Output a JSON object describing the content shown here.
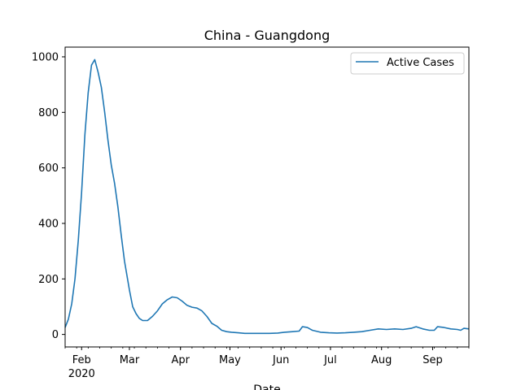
{
  "chart_data": {
    "type": "line",
    "title": "China - Guangdong",
    "xlabel": "Date",
    "ylabel": "",
    "x_start": "2020-01-22",
    "x_end": "2020-09-23",
    "ylim": [
      -45,
      1035
    ],
    "yticks": [
      0,
      200,
      400,
      600,
      800,
      1000
    ],
    "xticks": [
      {
        "date": "2020-02-01",
        "label": "Feb",
        "sublabel": "2020"
      },
      {
        "date": "2020-03-01",
        "label": "Mar",
        "sublabel": ""
      },
      {
        "date": "2020-04-01",
        "label": "Apr",
        "sublabel": ""
      },
      {
        "date": "2020-05-01",
        "label": "May",
        "sublabel": ""
      },
      {
        "date": "2020-06-01",
        "label": "Jun",
        "sublabel": ""
      },
      {
        "date": "2020-07-01",
        "label": "Jul",
        "sublabel": ""
      },
      {
        "date": "2020-08-01",
        "label": "Aug",
        "sublabel": ""
      },
      {
        "date": "2020-09-01",
        "label": "Sep",
        "sublabel": ""
      }
    ],
    "grid": false,
    "legend": {
      "position": "top-right"
    },
    "series": [
      {
        "name": "Active Cases",
        "color": "#1f77b4",
        "points": [
          [
            "2020-01-22",
            25
          ],
          [
            "2020-01-24",
            55
          ],
          [
            "2020-01-26",
            110
          ],
          [
            "2020-01-28",
            200
          ],
          [
            "2020-01-30",
            340
          ],
          [
            "2020-02-01",
            510
          ],
          [
            "2020-02-03",
            720
          ],
          [
            "2020-02-05",
            870
          ],
          [
            "2020-02-07",
            970
          ],
          [
            "2020-02-09",
            990
          ],
          [
            "2020-02-11",
            945
          ],
          [
            "2020-02-13",
            890
          ],
          [
            "2020-02-15",
            800
          ],
          [
            "2020-02-17",
            700
          ],
          [
            "2020-02-19",
            610
          ],
          [
            "2020-02-21",
            545
          ],
          [
            "2020-02-23",
            460
          ],
          [
            "2020-02-25",
            360
          ],
          [
            "2020-02-27",
            265
          ],
          [
            "2020-03-01",
            160
          ],
          [
            "2020-03-03",
            100
          ],
          [
            "2020-03-05",
            75
          ],
          [
            "2020-03-07",
            58
          ],
          [
            "2020-03-09",
            50
          ],
          [
            "2020-03-12",
            50
          ],
          [
            "2020-03-15",
            65
          ],
          [
            "2020-03-18",
            85
          ],
          [
            "2020-03-21",
            110
          ],
          [
            "2020-03-24",
            125
          ],
          [
            "2020-03-27",
            135
          ],
          [
            "2020-03-30",
            132
          ],
          [
            "2020-04-02",
            120
          ],
          [
            "2020-04-05",
            105
          ],
          [
            "2020-04-08",
            98
          ],
          [
            "2020-04-11",
            95
          ],
          [
            "2020-04-14",
            85
          ],
          [
            "2020-04-17",
            65
          ],
          [
            "2020-04-20",
            40
          ],
          [
            "2020-04-23",
            30
          ],
          [
            "2020-04-26",
            15
          ],
          [
            "2020-04-29",
            10
          ],
          [
            "2020-05-02",
            8
          ],
          [
            "2020-05-06",
            6
          ],
          [
            "2020-05-10",
            4
          ],
          [
            "2020-05-15",
            4
          ],
          [
            "2020-05-20",
            4
          ],
          [
            "2020-05-25",
            4
          ],
          [
            "2020-05-30",
            5
          ],
          [
            "2020-06-03",
            8
          ],
          [
            "2020-06-08",
            10
          ],
          [
            "2020-06-12",
            12
          ],
          [
            "2020-06-14",
            28
          ],
          [
            "2020-06-17",
            25
          ],
          [
            "2020-06-20",
            15
          ],
          [
            "2020-06-25",
            8
          ],
          [
            "2020-06-30",
            6
          ],
          [
            "2020-07-05",
            5
          ],
          [
            "2020-07-10",
            6
          ],
          [
            "2020-07-15",
            8
          ],
          [
            "2020-07-20",
            10
          ],
          [
            "2020-07-25",
            15
          ],
          [
            "2020-07-30",
            20
          ],
          [
            "2020-08-04",
            18
          ],
          [
            "2020-08-09",
            20
          ],
          [
            "2020-08-14",
            18
          ],
          [
            "2020-08-19",
            22
          ],
          [
            "2020-08-22",
            28
          ],
          [
            "2020-08-26",
            20
          ],
          [
            "2020-08-30",
            15
          ],
          [
            "2020-09-02",
            15
          ],
          [
            "2020-09-04",
            28
          ],
          [
            "2020-09-08",
            25
          ],
          [
            "2020-09-12",
            20
          ],
          [
            "2020-09-16",
            18
          ],
          [
            "2020-09-18",
            15
          ],
          [
            "2020-09-20",
            22
          ],
          [
            "2020-09-23",
            20
          ]
        ]
      }
    ]
  }
}
